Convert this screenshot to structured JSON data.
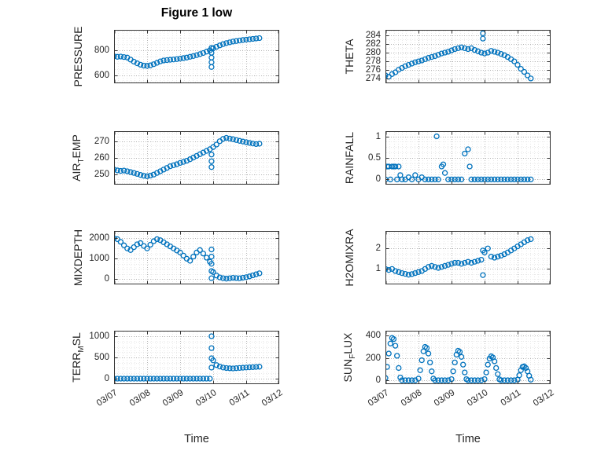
{
  "figure": {
    "title": "Figure 1 low"
  },
  "style": {
    "accent": "#0072BD",
    "axis": "#333333",
    "grid_major": "#b4b4b4",
    "grid_minor": "#e8e8e8",
    "text": "#262626"
  },
  "x_axis": {
    "label": "Time",
    "ticks": [
      "03/07",
      "03/08",
      "03/09",
      "03/10",
      "03/11",
      "03/12"
    ],
    "tick_values": [
      7,
      8,
      9,
      10,
      11,
      12
    ],
    "range": [
      7,
      12
    ]
  },
  "chart_data": [
    {
      "type": "scatter",
      "ylabel": "PRESSURE",
      "yticks": [
        600,
        800
      ],
      "ylim": [
        540,
        960
      ],
      "x": [
        7.0,
        7.1,
        7.2,
        7.3,
        7.4,
        7.5,
        7.6,
        7.7,
        7.8,
        7.9,
        8.0,
        8.1,
        8.2,
        8.3,
        8.4,
        8.5,
        8.6,
        8.7,
        8.8,
        8.9,
        9.0,
        9.1,
        9.2,
        9.3,
        9.4,
        9.5,
        9.6,
        9.7,
        9.8,
        9.9,
        9.95,
        9.95,
        9.95,
        9.95,
        9.95,
        10.0,
        10.1,
        10.2,
        10.3,
        10.4,
        10.5,
        10.6,
        10.7,
        10.8,
        10.9,
        11.0,
        11.1,
        11.2,
        11.3,
        11.4
      ],
      "y": [
        752,
        748,
        750,
        746,
        742,
        726,
        710,
        697,
        686,
        679,
        677,
        681,
        690,
        701,
        712,
        719,
        722,
        725,
        727,
        730,
        734,
        738,
        742,
        748,
        754,
        761,
        769,
        778,
        789,
        799,
        668,
        705,
        742,
        780,
        818,
        815,
        827,
        838,
        848,
        856,
        862,
        868,
        872,
        876,
        880,
        883,
        886,
        889,
        892,
        895
      ]
    },
    {
      "type": "scatter",
      "ylabel": "THETA",
      "yticks": [
        274,
        276,
        278,
        280,
        282,
        284
      ],
      "ylim": [
        273,
        285.2
      ],
      "x": [
        7.0,
        7.1,
        7.2,
        7.3,
        7.4,
        7.5,
        7.6,
        7.7,
        7.8,
        7.9,
        8.0,
        8.1,
        8.2,
        8.3,
        8.4,
        8.5,
        8.6,
        8.7,
        8.8,
        8.9,
        9.0,
        9.1,
        9.2,
        9.3,
        9.4,
        9.5,
        9.6,
        9.7,
        9.8,
        9.9,
        9.95,
        9.95,
        10.0,
        10.1,
        10.2,
        10.3,
        10.4,
        10.5,
        10.6,
        10.7,
        10.8,
        10.9,
        11.0,
        11.1,
        11.2,
        11.3,
        11.4
      ],
      "y": [
        274.8,
        274.5,
        275.1,
        275.5,
        276.1,
        276.5,
        276.9,
        277.2,
        277.5,
        277.8,
        278.0,
        278.2,
        278.5,
        278.8,
        279.0,
        279.2,
        279.5,
        279.8,
        280.0,
        280.2,
        280.5,
        280.8,
        281.0,
        281.2,
        281.0,
        280.8,
        281.0,
        280.6,
        280.3,
        280.0,
        283.2,
        284.4,
        279.8,
        280.0,
        280.4,
        280.2,
        280.0,
        279.7,
        279.4,
        279.0,
        278.5,
        278.0,
        277.2,
        276.3,
        275.6,
        274.8,
        274.1
      ]
    },
    {
      "type": "scatter",
      "ylabel": "AIR_TEMP",
      "yticks": [
        250,
        260,
        270
      ],
      "ylim": [
        244,
        276
      ],
      "x": [
        7.0,
        7.1,
        7.2,
        7.3,
        7.4,
        7.5,
        7.6,
        7.7,
        7.8,
        7.9,
        8.0,
        8.1,
        8.2,
        8.3,
        8.4,
        8.5,
        8.6,
        8.7,
        8.8,
        8.9,
        9.0,
        9.1,
        9.2,
        9.3,
        9.4,
        9.5,
        9.6,
        9.7,
        9.8,
        9.9,
        9.95,
        9.95,
        9.95,
        10.0,
        10.1,
        10.2,
        10.3,
        10.4,
        10.5,
        10.6,
        10.7,
        10.8,
        10.9,
        11.0,
        11.1,
        11.2,
        11.3,
        11.4
      ],
      "y": [
        253,
        252.5,
        252.2,
        252.4,
        252,
        251.5,
        251,
        250.4,
        249.8,
        249.3,
        249,
        249.4,
        250,
        251,
        252,
        253,
        254,
        255,
        255.6,
        256.2,
        257,
        257.6,
        258.3,
        259.2,
        260.2,
        261.2,
        262.2,
        263.2,
        264.2,
        265.2,
        254.5,
        258,
        262,
        266.5,
        268,
        270,
        271.4,
        272,
        271.6,
        271.2,
        270.7,
        270.2,
        269.8,
        269.4,
        269,
        268.6,
        268.3,
        268.5
      ]
    },
    {
      "type": "scatter",
      "ylabel": "RAINFALL",
      "yticks": [
        0,
        0.5,
        1
      ],
      "ylim": [
        -0.12,
        1.12
      ],
      "x": [
        7.0,
        7.05,
        7.1,
        7.15,
        7.2,
        7.25,
        7.3,
        7.35,
        7.4,
        7.45,
        7.5,
        7.6,
        7.7,
        7.8,
        7.9,
        8.0,
        8.1,
        8.2,
        8.3,
        8.4,
        8.5,
        8.55,
        8.6,
        8.7,
        8.75,
        8.8,
        8.9,
        9.0,
        9.1,
        9.2,
        9.3,
        9.4,
        9.5,
        9.55,
        9.6,
        9.7,
        9.8,
        9.9,
        10.0,
        10.1,
        10.2,
        10.3,
        10.4,
        10.5,
        10.6,
        10.7,
        10.8,
        10.9,
        11.0,
        11.1,
        11.2,
        11.3,
        11.4
      ],
      "y": [
        0,
        0.3,
        0.3,
        0,
        0.3,
        0.3,
        0.3,
        0,
        0.3,
        0.1,
        0,
        0,
        0.05,
        0,
        0.1,
        0,
        0.05,
        0,
        0,
        0,
        0,
        1.0,
        0,
        0.3,
        0.35,
        0.15,
        0,
        0,
        0,
        0,
        0,
        0.6,
        0.7,
        0.3,
        0,
        0,
        0,
        0,
        0,
        0,
        0,
        0,
        0,
        0,
        0,
        0,
        0,
        0,
        0,
        0,
        0,
        0,
        0
      ]
    },
    {
      "type": "scatter",
      "ylabel": "MIXDEPTH",
      "yticks": [
        0,
        1000,
        2000
      ],
      "ylim": [
        -250,
        2350
      ],
      "x": [
        7.0,
        7.1,
        7.2,
        7.3,
        7.4,
        7.5,
        7.6,
        7.7,
        7.8,
        7.9,
        8.0,
        8.1,
        8.2,
        8.3,
        8.4,
        8.5,
        8.6,
        8.7,
        8.8,
        8.9,
        9.0,
        9.1,
        9.2,
        9.3,
        9.4,
        9.5,
        9.6,
        9.7,
        9.8,
        9.9,
        9.95,
        9.95,
        9.95,
        9.95,
        9.95,
        10.0,
        10.1,
        10.2,
        10.3,
        10.4,
        10.5,
        10.6,
        10.7,
        10.8,
        10.9,
        11.0,
        11.1,
        11.2,
        11.3,
        11.4
      ],
      "y": [
        2000,
        1950,
        1820,
        1650,
        1500,
        1420,
        1560,
        1700,
        1760,
        1620,
        1500,
        1680,
        1850,
        1950,
        1900,
        1800,
        1700,
        1600,
        1500,
        1400,
        1300,
        1150,
        1000,
        900,
        1100,
        1300,
        1420,
        1250,
        1050,
        850,
        50,
        400,
        750,
        1100,
        1450,
        350,
        180,
        90,
        50,
        30,
        45,
        70,
        55,
        45,
        75,
        100,
        140,
        190,
        240,
        290
      ]
    },
    {
      "type": "scatter",
      "ylabel": "H2OMIXRA",
      "yticks": [
        1,
        2
      ],
      "ylim": [
        0.25,
        2.85
      ],
      "x": [
        7.0,
        7.1,
        7.2,
        7.3,
        7.4,
        7.5,
        7.6,
        7.7,
        7.8,
        7.9,
        8.0,
        8.1,
        8.2,
        8.3,
        8.4,
        8.5,
        8.6,
        8.7,
        8.8,
        8.9,
        9.0,
        9.1,
        9.2,
        9.3,
        9.4,
        9.5,
        9.6,
        9.7,
        9.8,
        9.9,
        9.95,
        9.95,
        10.0,
        10.1,
        10.2,
        10.3,
        10.4,
        10.5,
        10.6,
        10.7,
        10.8,
        10.9,
        11.0,
        11.1,
        11.2,
        11.3,
        11.4
      ],
      "y": [
        1.0,
        0.95,
        1.0,
        0.9,
        0.85,
        0.8,
        0.76,
        0.72,
        0.75,
        0.8,
        0.85,
        0.9,
        1.0,
        1.1,
        1.15,
        1.1,
        1.05,
        1.1,
        1.15,
        1.2,
        1.25,
        1.3,
        1.3,
        1.25,
        1.3,
        1.35,
        1.3,
        1.35,
        1.4,
        1.45,
        0.7,
        1.9,
        1.8,
        2.0,
        1.6,
        1.55,
        1.6,
        1.65,
        1.72,
        1.8,
        1.9,
        2.0,
        2.1,
        2.2,
        2.3,
        2.4,
        2.45
      ]
    },
    {
      "type": "scatter",
      "ylabel": "TERR_MSL",
      "yticks": [
        0,
        500,
        1000
      ],
      "ylim": [
        -130,
        1130
      ],
      "x": [
        7.0,
        7.1,
        7.2,
        7.3,
        7.4,
        7.5,
        7.6,
        7.7,
        7.8,
        7.9,
        8.0,
        8.1,
        8.2,
        8.3,
        8.4,
        8.5,
        8.6,
        8.7,
        8.8,
        8.9,
        9.0,
        9.1,
        9.2,
        9.3,
        9.4,
        9.5,
        9.6,
        9.7,
        9.8,
        9.9,
        9.95,
        9.95,
        9.95,
        9.95,
        10.0,
        10.1,
        10.2,
        10.3,
        10.4,
        10.5,
        10.6,
        10.7,
        10.8,
        10.9,
        11.0,
        11.1,
        11.2,
        11.3,
        11.4
      ],
      "y": [
        0,
        0,
        0,
        0,
        0,
        0,
        0,
        0,
        0,
        0,
        0,
        0,
        0,
        0,
        0,
        0,
        0,
        0,
        0,
        0,
        0,
        0,
        0,
        0,
        0,
        0,
        0,
        0,
        0,
        0,
        260,
        480,
        720,
        1000,
        430,
        320,
        285,
        262,
        250,
        244,
        240,
        246,
        252,
        258,
        262,
        267,
        271,
        276,
        281
      ]
    },
    {
      "type": "scatter",
      "ylabel": "SUN_FLUX",
      "yticks": [
        0,
        200,
        400
      ],
      "ylim": [
        -35,
        445
      ],
      "x": [
        7.0,
        7.05,
        7.1,
        7.15,
        7.2,
        7.25,
        7.3,
        7.35,
        7.4,
        7.45,
        7.5,
        7.6,
        7.7,
        7.8,
        7.9,
        8.0,
        8.05,
        8.1,
        8.15,
        8.2,
        8.25,
        8.3,
        8.35,
        8.4,
        8.45,
        8.5,
        8.6,
        8.7,
        8.8,
        8.9,
        9.0,
        9.05,
        9.1,
        9.15,
        9.2,
        9.25,
        9.3,
        9.35,
        9.4,
        9.45,
        9.5,
        9.6,
        9.7,
        9.8,
        9.9,
        10.0,
        10.05,
        10.1,
        10.15,
        10.2,
        10.25,
        10.3,
        10.35,
        10.4,
        10.45,
        10.5,
        10.6,
        10.7,
        10.8,
        10.9,
        11.0,
        11.05,
        11.1,
        11.15,
        11.2,
        11.25,
        11.3,
        11.35,
        11.4
      ],
      "y": [
        20,
        120,
        240,
        330,
        380,
        370,
        310,
        220,
        110,
        25,
        0,
        0,
        0,
        0,
        0,
        15,
        90,
        180,
        260,
        300,
        290,
        240,
        160,
        80,
        15,
        0,
        0,
        0,
        0,
        0,
        10,
        80,
        160,
        230,
        265,
        255,
        210,
        140,
        70,
        10,
        0,
        0,
        0,
        0,
        0,
        10,
        70,
        140,
        195,
        215,
        205,
        170,
        110,
        55,
        8,
        0,
        0,
        0,
        0,
        0,
        5,
        45,
        90,
        120,
        125,
        110,
        80,
        40,
        5
      ]
    }
  ]
}
